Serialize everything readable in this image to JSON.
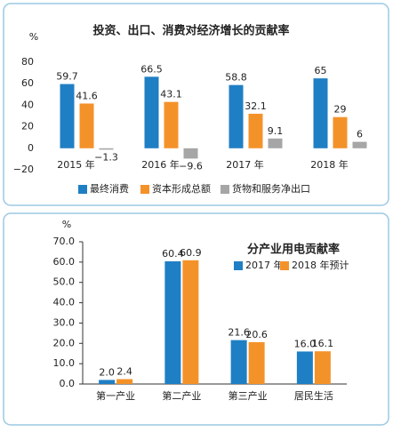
{
  "chart_data": [
    {
      "type": "bar",
      "title": "投资、出口、消费对经济增长的贡献率",
      "y_label": "%",
      "categories": [
        "2015 年",
        "2016 年",
        "2017 年",
        "2018 年"
      ],
      "series": [
        {
          "name": "最终消费",
          "color": "#1f7fc4",
          "values": [
            59.7,
            66.5,
            58.8,
            65
          ]
        },
        {
          "name": "资本形成总额",
          "color": "#f4922a",
          "values": [
            41.6,
            43.1,
            32.1,
            29
          ]
        },
        {
          "name": "货物和服务净出口",
          "color": "#a6a6a6",
          "values": [
            -1.3,
            -9.6,
            9.1,
            6
          ],
          "value_labels": [
            "−1.3",
            "−9.6",
            "9.1",
            "6"
          ]
        }
      ],
      "ylim": [
        -20,
        80
      ],
      "yticks": [
        {
          "value": -20,
          "label": "−20"
        },
        0,
        20,
        40,
        60,
        80
      ],
      "grid": false,
      "legend": "bottom"
    },
    {
      "type": "bar",
      "title": "分产业用电贡献率",
      "y_label": "%",
      "categories": [
        "第一产业",
        "第二产业",
        "第三产业",
        "居民生活"
      ],
      "series": [
        {
          "name": "2017 年",
          "color": "#1f7fc4",
          "values": [
            2.0,
            60.4,
            21.6,
            16.0
          ],
          "value_labels": [
            "2.0",
            "60.4",
            "21.6",
            "16.0"
          ]
        },
        {
          "name": "2018 年预计",
          "color": "#f4922a",
          "values": [
            2.4,
            60.9,
            20.6,
            16.1
          ]
        }
      ],
      "ylim": [
        0,
        70
      ],
      "yticks": [
        {
          "value": 0,
          "label": "0.0"
        },
        {
          "value": 10,
          "label": "10.0"
        },
        {
          "value": 20,
          "label": "20.0"
        },
        {
          "value": 30,
          "label": "30.0"
        },
        {
          "value": 40,
          "label": "40.0"
        },
        {
          "value": 50,
          "label": "50.0"
        },
        {
          "value": 60,
          "label": "60.0"
        },
        {
          "value": 70,
          "label": "70.0"
        }
      ],
      "grid": false,
      "legend": "top-right"
    }
  ]
}
